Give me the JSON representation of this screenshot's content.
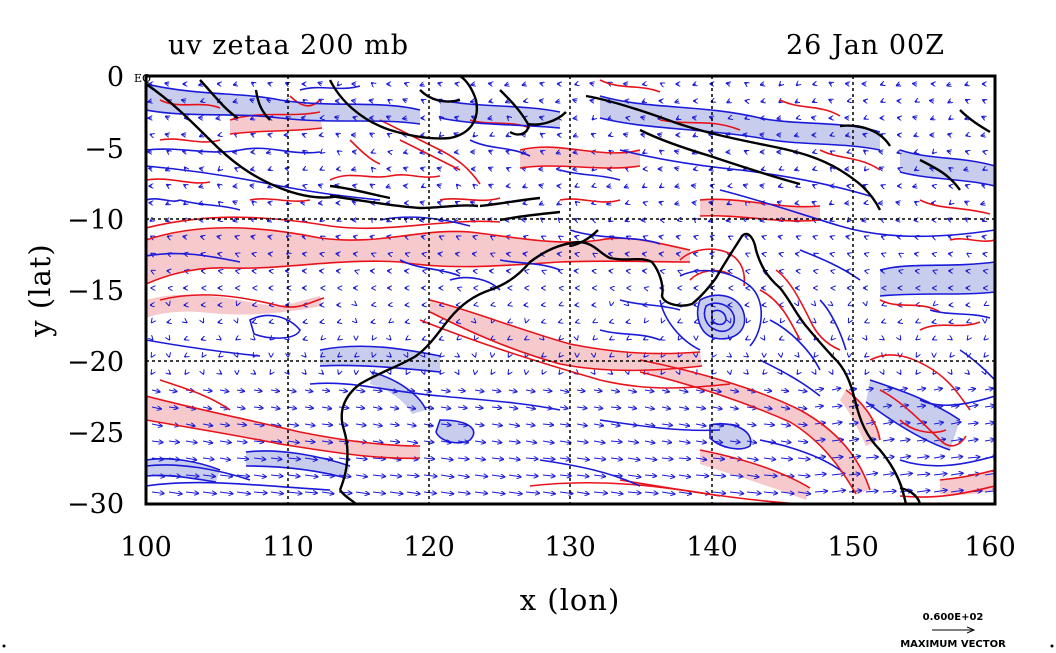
{
  "title_left": "uv zetaa 200 mb",
  "title_right": "26 Jan 00Z",
  "x_axis": {
    "label": "x (lon)",
    "ticks": [
      "100",
      "110",
      "120",
      "130",
      "140",
      "150",
      "160"
    ],
    "values": [
      100,
      110,
      120,
      130,
      140,
      150,
      160
    ]
  },
  "y_axis": {
    "label": "y (lat)",
    "ticks": [
      "0",
      "−5",
      "−10",
      "−15",
      "−20",
      "−25",
      "−30"
    ],
    "values": [
      0,
      -5,
      -10,
      -15,
      -20,
      -25,
      -30
    ]
  },
  "corner_label": "EQ",
  "vector_legend": {
    "magnitude": "0.600E+02",
    "caption": "MAXIMUM VECTOR"
  },
  "map": {
    "lon_range": [
      100,
      160
    ],
    "lat_range": [
      -30,
      0
    ],
    "grid": true,
    "colors": {
      "positive_contour": "#e8131a",
      "negative_contour": "#1a1ad8",
      "positive_fill": "#f6c9cc",
      "negative_fill": "#c8cdee",
      "vectors": "#1a1ad8",
      "coastline": "#000000"
    }
  }
}
